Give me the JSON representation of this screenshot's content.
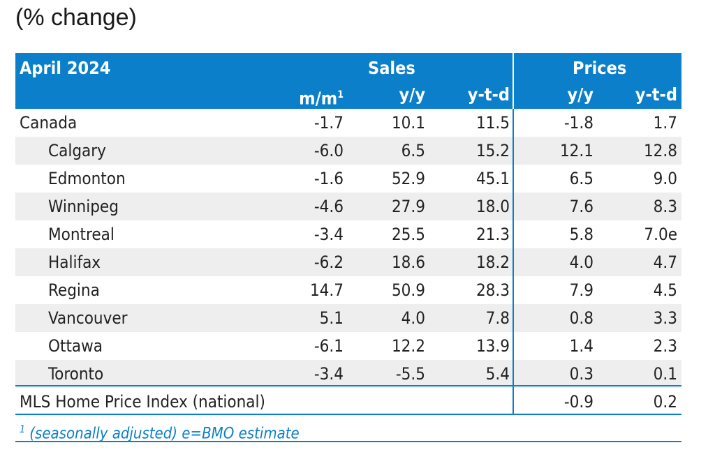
{
  "subtitle": "(% change)",
  "chart_data": {
    "type": "table",
    "period": "April 2024",
    "group_headers": [
      "Sales",
      "Prices"
    ],
    "columns": [
      {
        "group": "Sales",
        "label": "m/m",
        "footnote_mark": "1"
      },
      {
        "group": "Sales",
        "label": "y/y"
      },
      {
        "group": "Sales",
        "label": "y-t-d"
      },
      {
        "group": "Prices",
        "label": "y/y"
      },
      {
        "group": "Prices",
        "label": "y-t-d"
      }
    ],
    "rows": [
      {
        "name": "Canada",
        "indent": false,
        "values": [
          "-1.7",
          "10.1",
          "11.5",
          "-1.8",
          "1.7"
        ]
      },
      {
        "name": "Calgary",
        "indent": true,
        "values": [
          "-6.0",
          "6.5",
          "15.2",
          "12.1",
          "12.8"
        ]
      },
      {
        "name": "Edmonton",
        "indent": true,
        "values": [
          "-1.6",
          "52.9",
          "45.1",
          "6.5",
          "9.0"
        ]
      },
      {
        "name": "Winnipeg",
        "indent": true,
        "values": [
          "-4.6",
          "27.9",
          "18.0",
          "7.6",
          "8.3"
        ]
      },
      {
        "name": "Montreal",
        "indent": true,
        "values": [
          "-3.4",
          "25.5",
          "21.3",
          "5.8",
          "7.0e"
        ]
      },
      {
        "name": "Halifax",
        "indent": true,
        "values": [
          "-6.2",
          "18.6",
          "18.2",
          "4.0",
          "4.7"
        ]
      },
      {
        "name": "Regina",
        "indent": true,
        "values": [
          "14.7",
          "50.9",
          "28.3",
          "7.9",
          "4.5"
        ]
      },
      {
        "name": "Vancouver",
        "indent": true,
        "values": [
          "5.1",
          "4.0",
          "7.8",
          "0.8",
          "3.3"
        ]
      },
      {
        "name": "Ottawa",
        "indent": true,
        "values": [
          "-6.1",
          "12.2",
          "13.9",
          "1.4",
          "2.3"
        ]
      },
      {
        "name": "Toronto",
        "indent": true,
        "values": [
          "-3.4",
          "-5.5",
          "5.4",
          "0.3",
          "0.1"
        ]
      }
    ],
    "index_row": {
      "name": "MLS Home Price Index (national)",
      "values": [
        "",
        "",
        "",
        "-0.9",
        "0.2"
      ]
    },
    "footnote": {
      "mark": "1",
      "text": " (seasonally adjusted) e=BMO estimate"
    },
    "colors": {
      "accent": "#0b7fc9",
      "stripe": "#eeeeee"
    }
  }
}
